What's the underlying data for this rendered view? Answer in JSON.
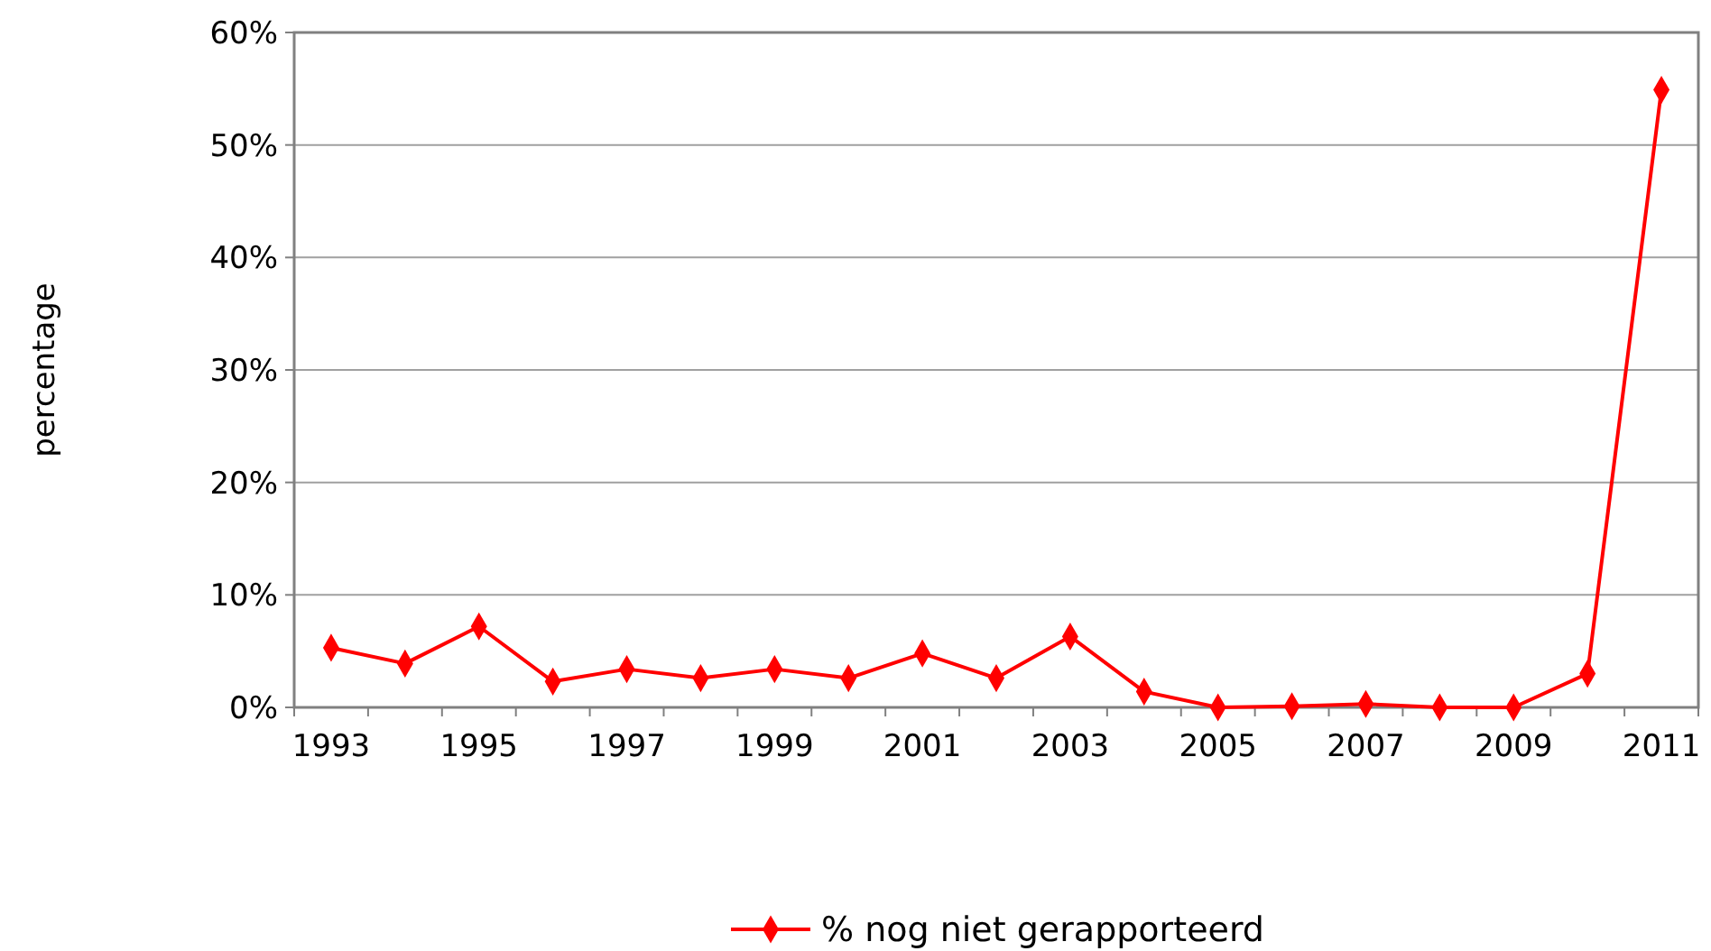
{
  "chart_data": {
    "type": "line",
    "ylabel": "percentage",
    "categories": [
      "1993",
      null,
      "1995",
      null,
      "1997",
      null,
      "1999",
      null,
      "2001",
      null,
      "2003",
      null,
      "2005",
      null,
      "2007",
      null,
      "2009",
      null,
      "2011"
    ],
    "series": [
      {
        "name": "% nog niet gerapporteerd",
        "color": "#ff0000",
        "values": [
          5.3,
          3.9,
          7.2,
          2.3,
          3.4,
          2.6,
          3.4,
          2.6,
          4.8,
          2.6,
          6.3,
          1.4,
          0,
          0.1,
          0.3,
          0,
          0,
          3.0,
          54.9
        ]
      }
    ],
    "ylim": [
      0,
      60
    ],
    "yticks": [
      {
        "value": 0,
        "label": "0%"
      },
      {
        "value": 10,
        "label": "10%"
      },
      {
        "value": 20,
        "label": "20%"
      },
      {
        "value": 30,
        "label": "30%"
      },
      {
        "value": 40,
        "label": "40%"
      },
      {
        "value": 50,
        "label": "50%"
      },
      {
        "value": 60,
        "label": "60%"
      }
    ],
    "grid": "y",
    "legend": "bottom",
    "marker": "diamond",
    "line_style": "solid"
  }
}
